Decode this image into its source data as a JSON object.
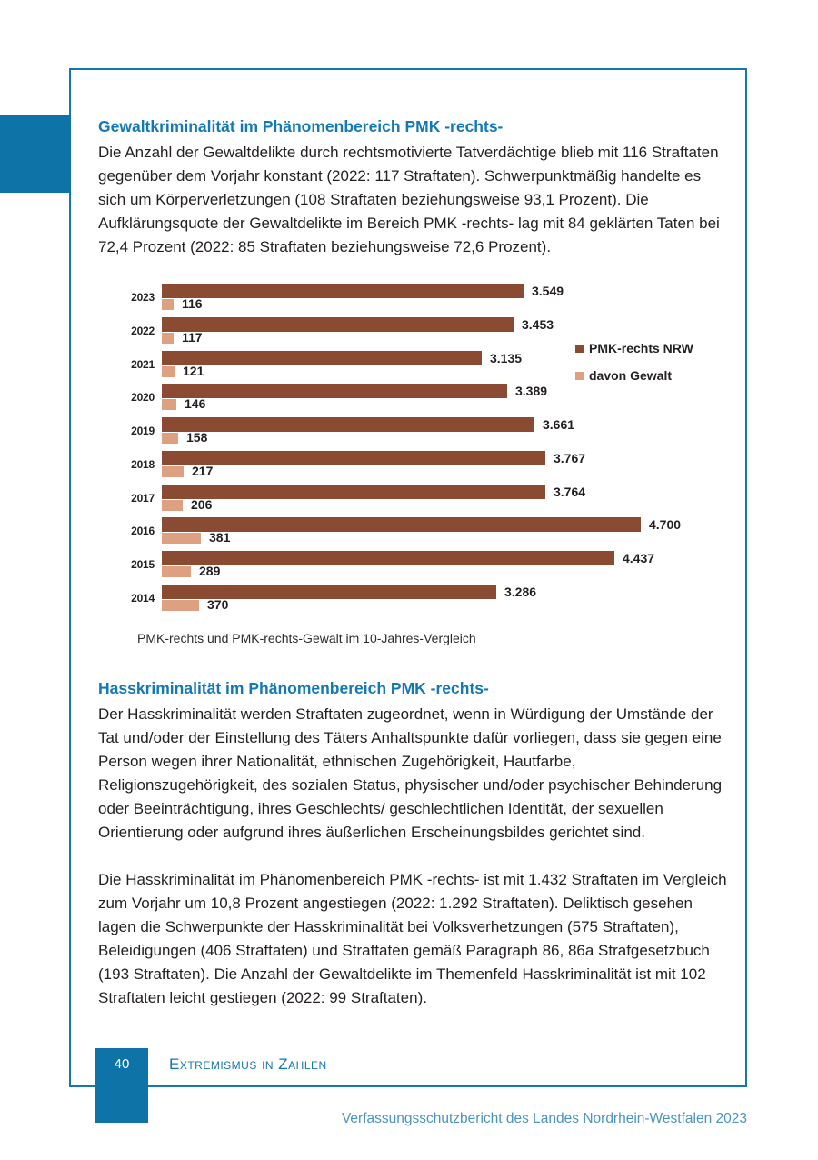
{
  "document": {
    "section_gewalt": {
      "heading": "Gewaltkriminalität im Phänomenbereich PMK -rechts-",
      "body": "Die Anzahl der Gewaltdelikte durch rechtsmotivierte Tatverdächtige blieb mit 116 Straftaten gegenüber dem Vorjahr konstant (2022: 117 Straftaten). Schwerpunktmäßig handelte es sich um Körperverletzungen (108 Straftaten beziehungsweise 93,1 Prozent). Die Aufklärungsquote der Gewaltdelikte im Bereich PMK -rechts- lag mit 84 geklärten Taten bei 72,4 Prozent (2022: 85 Straftaten beziehungsweise 72,6 Prozent)."
    },
    "section_hass": {
      "heading": "Hasskriminalität im Phänomenbereich PMK -rechts-",
      "body1": "Der Hasskriminalität werden Straftaten zugeordnet, wenn in Würdigung der Umstände der Tat und/oder der Einstellung des Täters Anhaltspunkte dafür vorliegen, dass sie gegen eine Person wegen ihrer Nationalität, ethnischen Zugehörigkeit, Hautfarbe, Religionszugehörigkeit, des sozialen Status, physischer und/oder psychischer Behinderung oder Beeinträchtigung, ihres Geschlechts/ geschlechtlichen Identität, der sexuellen Orientierung oder aufgrund ihres äußerlichen Erscheinungsbildes gerichtet sind.",
      "body2": "Die Hasskriminalität im Phänomenbereich PMK -rechts- ist mit 1.432 Straftaten im Vergleich zum Vorjahr um 10,8 Prozent angestiegen (2022: 1.292 Straftaten). Deliktisch gesehen lagen die Schwerpunkte der Hasskriminalität bei Volksverhetzungen (575 Straftaten), Beleidigungen (406 Straftaten) und Straftaten gemäß Paragraph 86, 86a Strafgesetzbuch (193 Straftaten). Die Anzahl der Gewaltdelikte im Themenfeld Hasskriminalität ist mit 102 Straftaten leicht gestiegen (2022: 99 Straftaten)."
    },
    "footer": {
      "page_number": "40",
      "section_label": "Extremismus in Zahlen",
      "report_title": "Verfassungsschutzbericht des Landes Nordrhein-Westfalen 2023"
    }
  },
  "chart_data": {
    "type": "bar",
    "orientation": "horizontal",
    "caption": "PMK-rechts und PMK-rechts-Gewalt im 10-Jahres-Vergleich",
    "categories": [
      "2023",
      "2022",
      "2021",
      "2020",
      "2019",
      "2018",
      "2017",
      "2016",
      "2015",
      "2014"
    ],
    "series": [
      {
        "name": "PMK-rechts NRW",
        "color": "#8b4a32",
        "values": [
          3549,
          3453,
          3135,
          3389,
          3661,
          3767,
          3764,
          4700,
          4437,
          3286
        ],
        "value_labels": [
          "3.549",
          "3.453",
          "3.135",
          "3.389",
          "3.661",
          "3.767",
          "3.764",
          "4.700",
          "4.437",
          "3.286"
        ]
      },
      {
        "name": "davon Gewalt",
        "color": "#dda081",
        "values": [
          116,
          117,
          121,
          146,
          158,
          217,
          206,
          381,
          289,
          370
        ],
        "value_labels": [
          "116",
          "117",
          "121",
          "146",
          "158",
          "217",
          "206",
          "381",
          "289",
          "370"
        ]
      }
    ],
    "xmax": 4700,
    "grid": false,
    "legend_position": "right",
    "value_labels_shown": true
  },
  "colors": {
    "accent_blue": "#1379b4",
    "frame_blue": "#1577ad",
    "footer_blue": "#0e74a8",
    "report_title_blue": "#4a94c0",
    "bar_dark": "#8b4a32",
    "bar_light": "#dda081",
    "text": "#231f20"
  }
}
